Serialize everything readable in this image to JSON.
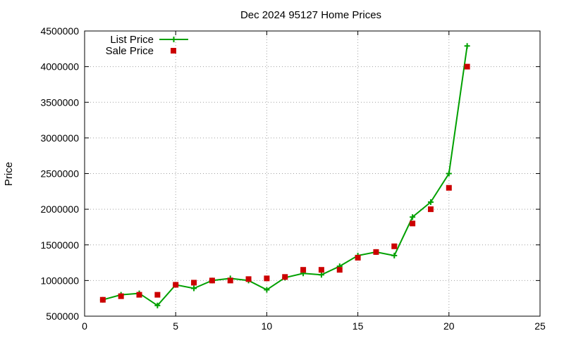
{
  "chart_data": {
    "type": "line",
    "title": "Dec 2024 95127 Home Prices",
    "xlabel": "",
    "ylabel": "Price",
    "xlim": [
      0,
      25
    ],
    "ylim": [
      500000,
      4500000
    ],
    "xticks": [
      0,
      5,
      10,
      15,
      20,
      25
    ],
    "yticks": [
      500000,
      1000000,
      1500000,
      2000000,
      2500000,
      3000000,
      3500000,
      4000000,
      4500000
    ],
    "grid": true,
    "legend_position": "top-left",
    "series": [
      {
        "name": "List Price",
        "style": "line+plus",
        "color": "#00a000",
        "x": [
          1,
          2,
          3,
          4,
          5,
          6,
          7,
          8,
          9,
          10,
          11,
          12,
          13,
          14,
          15,
          16,
          17,
          18,
          19,
          20,
          21
        ],
        "y": [
          730000,
          800000,
          820000,
          650000,
          940000,
          890000,
          1000000,
          1030000,
          1000000,
          870000,
          1040000,
          1100000,
          1080000,
          1200000,
          1350000,
          1400000,
          1350000,
          1890000,
          2100000,
          2500000,
          4290000
        ]
      },
      {
        "name": "Sale Price",
        "style": "square",
        "color": "#cc0000",
        "x": [
          1,
          2,
          3,
          4,
          5,
          6,
          7,
          8,
          9,
          10,
          11,
          12,
          13,
          14,
          15,
          16,
          17,
          18,
          19,
          20,
          21
        ],
        "y": [
          730000,
          780000,
          800000,
          800000,
          940000,
          970000,
          1000000,
          1000000,
          1020000,
          1030000,
          1050000,
          1150000,
          1150000,
          1150000,
          1320000,
          1400000,
          1480000,
          1800000,
          2000000,
          2300000,
          4000000
        ]
      }
    ]
  }
}
